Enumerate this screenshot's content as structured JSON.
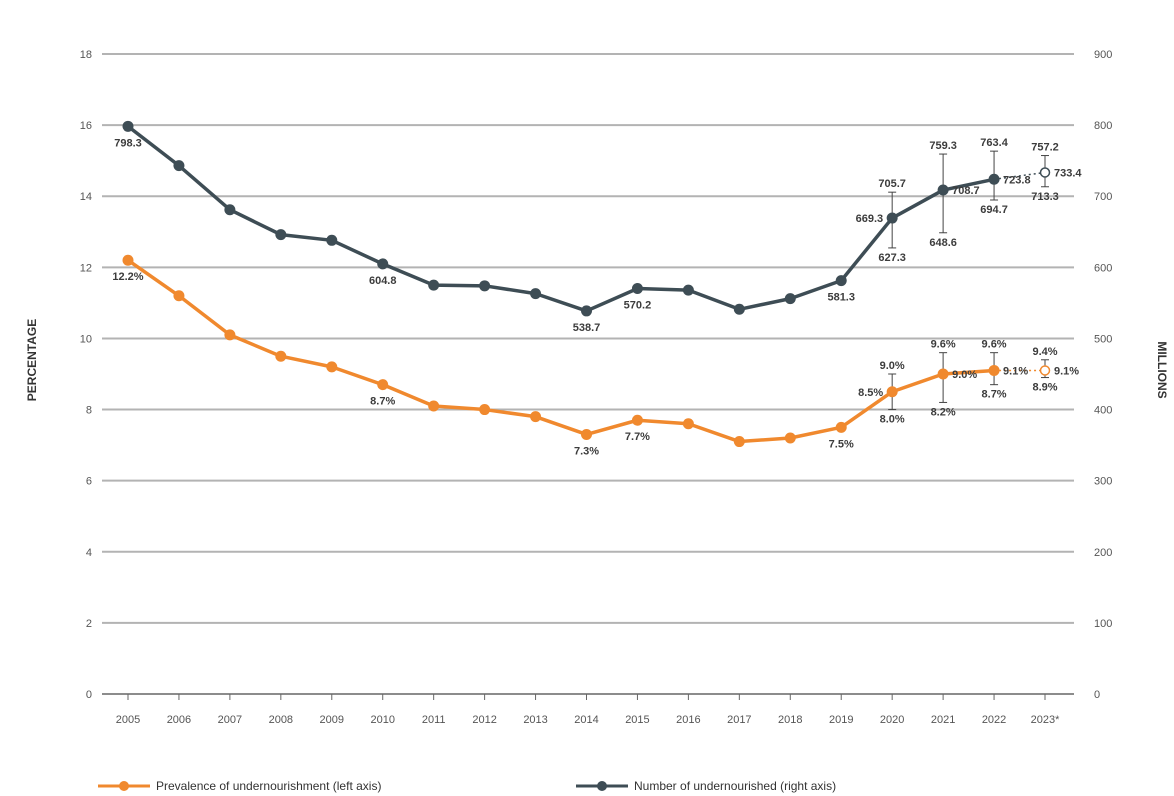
{
  "chart_data": {
    "type": "line",
    "x": [
      "2005",
      "2006",
      "2007",
      "2008",
      "2009",
      "2010",
      "2011",
      "2012",
      "2013",
      "2014",
      "2015",
      "2016",
      "2017",
      "2018",
      "2019",
      "2020",
      "2021",
      "2022",
      "2023*"
    ],
    "y_left_label": "PERCENTAGE",
    "y_right_label": "MILLIONS",
    "y_left_lim": [
      0,
      18
    ],
    "y_right_lim": [
      0,
      900
    ],
    "y_left_ticks": [
      "0",
      "2",
      "4",
      "6",
      "8",
      "10",
      "12",
      "14",
      "16",
      "18"
    ],
    "y_right_ticks": [
      "0",
      "100",
      "200",
      "300",
      "400",
      "500",
      "600",
      "700",
      "800",
      "900"
    ],
    "grid": true,
    "legend_position": "bottom",
    "series": [
      {
        "name": "Prevalence of undernourishment (left axis)",
        "axis": "left",
        "color": "#f0892e",
        "values": [
          12.2,
          11.2,
          10.1,
          9.5,
          9.2,
          8.7,
          8.1,
          8.0,
          7.8,
          7.3,
          7.7,
          7.6,
          7.1,
          7.2,
          7.5,
          8.5,
          9.0,
          9.1,
          9.1
        ],
        "projected_from_index": 17,
        "labels": [
          {
            "i": 0,
            "text": "12.2%",
            "pos": "below"
          },
          {
            "i": 5,
            "text": "8.7%",
            "pos": "below"
          },
          {
            "i": 9,
            "text": "7.3%",
            "pos": "below"
          },
          {
            "i": 10,
            "text": "7.7%",
            "pos": "below"
          },
          {
            "i": 14,
            "text": "7.5%",
            "pos": "below"
          },
          {
            "i": 15,
            "text": "8.5%",
            "pos": "left"
          },
          {
            "i": 16,
            "text": "9.0%",
            "pos": "right"
          },
          {
            "i": 17,
            "text": "9.1%",
            "pos": "right"
          },
          {
            "i": 18,
            "text": "9.1%",
            "pos": "right"
          }
        ],
        "ranges": [
          {
            "i": 15,
            "low": 8.0,
            "high": 9.0,
            "low_text": "8.0%",
            "high_text": "9.0%"
          },
          {
            "i": 16,
            "low": 8.2,
            "high": 9.6,
            "low_text": "8.2%",
            "high_text": "9.6%"
          },
          {
            "i": 17,
            "low": 8.7,
            "high": 9.6,
            "low_text": "8.7%",
            "high_text": "9.6%"
          },
          {
            "i": 18,
            "low": 8.9,
            "high": 9.4,
            "low_text": "8.9%",
            "high_text": "9.4%"
          }
        ]
      },
      {
        "name": "Number of undernourished (right axis)",
        "axis": "right",
        "color": "#3e4d55",
        "values": [
          798.3,
          743,
          681,
          646,
          638,
          604.8,
          575,
          574,
          563,
          538.7,
          570.2,
          568,
          541,
          556,
          581.3,
          669.3,
          708.7,
          723.8,
          733.4
        ],
        "projected_from_index": 17,
        "labels": [
          {
            "i": 0,
            "text": "798.3",
            "pos": "below"
          },
          {
            "i": 5,
            "text": "604.8",
            "pos": "below"
          },
          {
            "i": 9,
            "text": "538.7",
            "pos": "below"
          },
          {
            "i": 10,
            "text": "570.2",
            "pos": "below"
          },
          {
            "i": 14,
            "text": "581.3",
            "pos": "below"
          },
          {
            "i": 15,
            "text": "669.3",
            "pos": "left"
          },
          {
            "i": 16,
            "text": "708.7",
            "pos": "right"
          },
          {
            "i": 17,
            "text": "723.8",
            "pos": "right"
          },
          {
            "i": 18,
            "text": "733.4",
            "pos": "right"
          }
        ],
        "ranges": [
          {
            "i": 15,
            "low": 627.3,
            "high": 705.7,
            "low_text": "627.3",
            "high_text": "705.7"
          },
          {
            "i": 16,
            "low": 648.6,
            "high": 759.3,
            "low_text": "648.6",
            "high_text": "759.3"
          },
          {
            "i": 17,
            "low": 694.7,
            "high": 763.4,
            "low_text": "694.7",
            "high_text": "763.4"
          },
          {
            "i": 18,
            "low": 713.3,
            "high": 757.2,
            "low_text": "713.3",
            "high_text": "757.2"
          }
        ]
      }
    ]
  }
}
